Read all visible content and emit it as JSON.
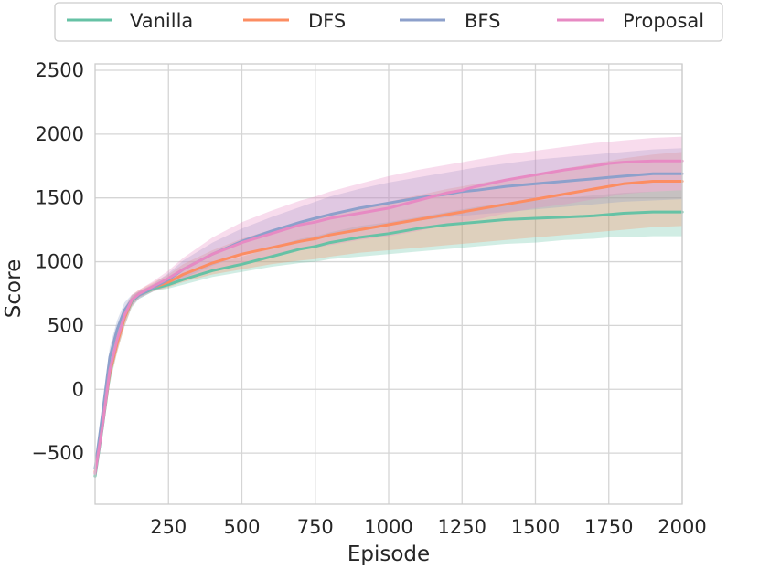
{
  "chart_data": {
    "type": "line",
    "title": "",
    "xlabel": "Episode",
    "ylabel": "Score",
    "xlim": [
      0,
      2000
    ],
    "ylim": [
      -900,
      2550
    ],
    "x_ticks": [
      250,
      500,
      750,
      1000,
      1250,
      1500,
      1750,
      2000
    ],
    "y_ticks": [
      -500,
      0,
      500,
      1000,
      1500,
      2000,
      2500
    ],
    "grid": true,
    "legend_position": "top",
    "x": [
      0,
      25,
      50,
      75,
      100,
      125,
      150,
      200,
      250,
      300,
      400,
      500,
      600,
      700,
      750,
      800,
      900,
      1000,
      1100,
      1200,
      1250,
      1300,
      1400,
      1500,
      1600,
      1700,
      1750,
      1800,
      1900,
      2000
    ],
    "series": [
      {
        "name": "Vanilla",
        "color": "#66c2a5",
        "values": [
          -680,
          -300,
          120,
          370,
          560,
          690,
          740,
          790,
          820,
          860,
          930,
          980,
          1040,
          1100,
          1120,
          1150,
          1190,
          1220,
          1260,
          1290,
          1300,
          1310,
          1330,
          1340,
          1350,
          1360,
          1370,
          1380,
          1390,
          1390
        ],
        "band_low": [
          -720,
          -380,
          40,
          290,
          490,
          640,
          710,
          770,
          790,
          820,
          880,
          920,
          960,
          990,
          1000,
          1020,
          1040,
          1060,
          1080,
          1100,
          1110,
          1120,
          1140,
          1150,
          1170,
          1180,
          1190,
          1190,
          1200,
          1200
        ],
        "band_high": [
          -620,
          -220,
          190,
          440,
          620,
          730,
          770,
          820,
          850,
          900,
          980,
          1040,
          1110,
          1180,
          1200,
          1230,
          1280,
          1310,
          1350,
          1390,
          1410,
          1430,
          1460,
          1480,
          1500,
          1520,
          1530,
          1540,
          1550,
          1560
        ]
      },
      {
        "name": "DFS",
        "color": "#fc8d62",
        "values": [
          -650,
          -280,
          130,
          360,
          560,
          700,
          750,
          800,
          840,
          900,
          990,
          1060,
          1110,
          1160,
          1180,
          1210,
          1250,
          1290,
          1330,
          1370,
          1390,
          1410,
          1450,
          1490,
          1530,
          1570,
          1590,
          1610,
          1630,
          1630
        ],
        "band_low": [
          -700,
          -360,
          60,
          290,
          490,
          650,
          720,
          770,
          800,
          840,
          900,
          940,
          980,
          1010,
          1020,
          1040,
          1070,
          1090,
          1110,
          1130,
          1140,
          1150,
          1170,
          1190,
          1210,
          1230,
          1240,
          1250,
          1270,
          1280
        ],
        "band_high": [
          -600,
          -200,
          200,
          430,
          630,
          740,
          780,
          840,
          900,
          980,
          1090,
          1180,
          1250,
          1310,
          1340,
          1370,
          1420,
          1470,
          1520,
          1570,
          1590,
          1610,
          1650,
          1690,
          1730,
          1770,
          1790,
          1810,
          1840,
          1860
        ]
      },
      {
        "name": "BFS",
        "color": "#8da0cb",
        "values": [
          -620,
          -200,
          250,
          470,
          620,
          700,
          740,
          800,
          860,
          940,
          1060,
          1160,
          1240,
          1310,
          1340,
          1370,
          1420,
          1460,
          1500,
          1530,
          1550,
          1560,
          1590,
          1610,
          1630,
          1650,
          1660,
          1670,
          1690,
          1690
        ],
        "band_low": [
          -690,
          -300,
          160,
          400,
          560,
          660,
          710,
          770,
          810,
          870,
          970,
          1050,
          1110,
          1170,
          1190,
          1220,
          1260,
          1290,
          1320,
          1350,
          1360,
          1370,
          1390,
          1410,
          1430,
          1450,
          1460,
          1470,
          1480,
          1490
        ],
        "band_high": [
          -560,
          -110,
          330,
          540,
          680,
          740,
          770,
          830,
          910,
          1010,
          1150,
          1260,
          1350,
          1430,
          1470,
          1510,
          1570,
          1620,
          1660,
          1700,
          1720,
          1740,
          1770,
          1800,
          1820,
          1840,
          1850,
          1860,
          1880,
          1890
        ]
      },
      {
        "name": "Proposal",
        "color": "#e78ac3",
        "values": [
          -660,
          -290,
          150,
          390,
          580,
          700,
          750,
          810,
          870,
          940,
          1060,
          1150,
          1220,
          1290,
          1310,
          1340,
          1380,
          1420,
          1480,
          1540,
          1560,
          1590,
          1640,
          1680,
          1720,
          1750,
          1770,
          1780,
          1790,
          1790
        ],
        "band_low": [
          -710,
          -360,
          70,
          310,
          510,
          650,
          720,
          780,
          810,
          850,
          930,
          990,
          1040,
          1090,
          1110,
          1130,
          1170,
          1200,
          1240,
          1290,
          1310,
          1330,
          1380,
          1420,
          1450,
          1490,
          1510,
          1530,
          1550,
          1560
        ],
        "band_high": [
          -610,
          -210,
          230,
          460,
          640,
          740,
          780,
          850,
          930,
          1030,
          1190,
          1310,
          1400,
          1480,
          1510,
          1550,
          1610,
          1670,
          1720,
          1760,
          1780,
          1800,
          1840,
          1870,
          1900,
          1930,
          1940,
          1950,
          1970,
          1980
        ]
      }
    ]
  }
}
